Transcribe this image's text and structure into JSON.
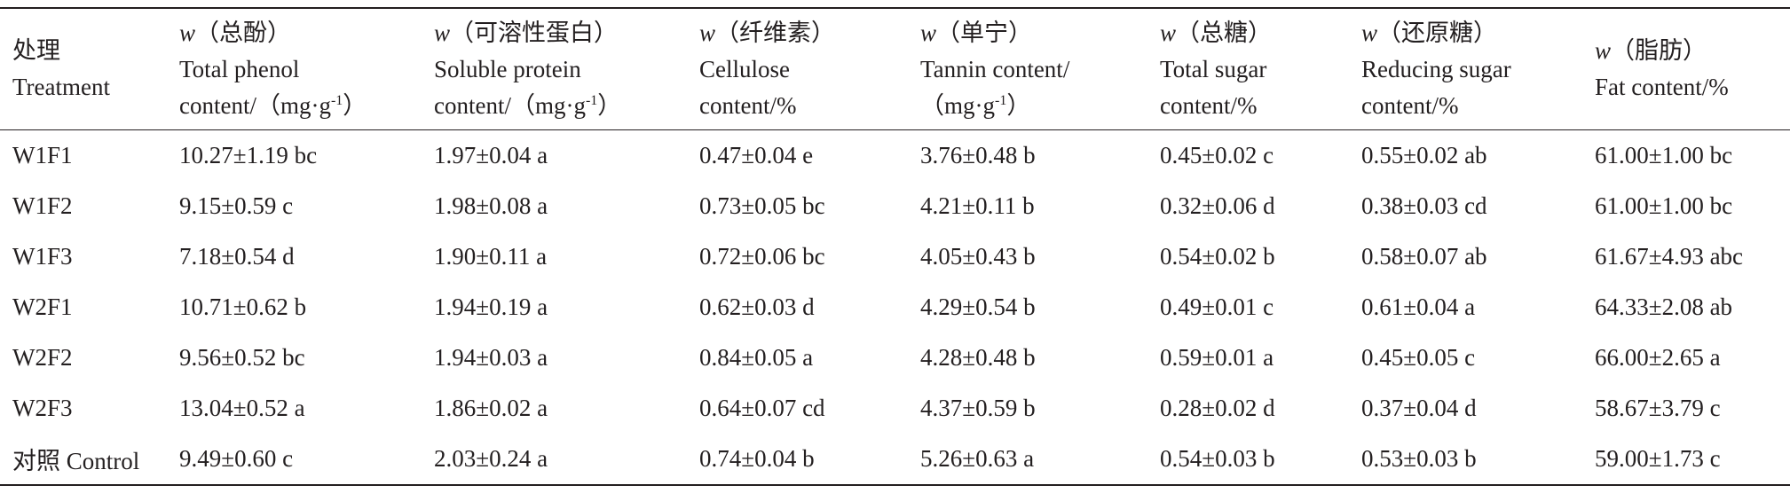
{
  "table": {
    "header": [
      [
        [
          "处理"
        ],
        [
          "Treatment"
        ]
      ],
      [
        [
          {
            "italic": "w"
          },
          "（总酚）"
        ],
        [
          "Total phenol"
        ],
        [
          "content/（mg·g",
          {
            "sup": "-1"
          },
          "）"
        ]
      ],
      [
        [
          {
            "italic": "w"
          },
          "（可溶性蛋白）"
        ],
        [
          "Soluble protein"
        ],
        [
          "content/（mg·g",
          {
            "sup": "-1"
          },
          "）"
        ]
      ],
      [
        [
          {
            "italic": "w"
          },
          "（纤维素）"
        ],
        [
          "Cellulose"
        ],
        [
          "content/%"
        ]
      ],
      [
        [
          {
            "italic": "w"
          },
          "（单宁）"
        ],
        [
          "Tannin content/"
        ],
        [
          "（mg·g",
          {
            "sup": "-1"
          },
          "）"
        ]
      ],
      [
        [
          {
            "italic": "w"
          },
          "（总糖）"
        ],
        [
          "Total sugar"
        ],
        [
          "content/%"
        ]
      ],
      [
        [
          {
            "italic": "w"
          },
          "（还原糖）"
        ],
        [
          "Reducing sugar"
        ],
        [
          "content/%"
        ]
      ],
      [
        [
          {
            "italic": "w"
          },
          "（脂肪）"
        ],
        [
          "Fat content/%"
        ]
      ]
    ],
    "rows": [
      [
        "W1F1",
        "10.27±1.19 bc",
        "1.97±0.04 a",
        "0.47±0.04 e",
        "3.76±0.48 b",
        "0.45±0.02 c",
        "0.55±0.02 ab",
        "61.00±1.00 bc"
      ],
      [
        "W1F2",
        "9.15±0.59 c",
        "1.98±0.08 a",
        "0.73±0.05 bc",
        "4.21±0.11 b",
        "0.32±0.06 d",
        "0.38±0.03 cd",
        "61.00±1.00 bc"
      ],
      [
        "W1F3",
        "7.18±0.54 d",
        "1.90±0.11 a",
        "0.72±0.06 bc",
        "4.05±0.43 b",
        "0.54±0.02 b",
        "0.58±0.07 ab",
        "61.67±4.93 abc"
      ],
      [
        "W2F1",
        "10.71±0.62 b",
        "1.94±0.19 a",
        "0.62±0.03 d",
        "4.29±0.54 b",
        "0.49±0.01 c",
        "0.61±0.04 a",
        "64.33±2.08 ab"
      ],
      [
        "W2F2",
        "9.56±0.52 bc",
        "1.94±0.03 a",
        "0.84±0.05 a",
        "4.28±0.48 b",
        "0.59±0.01 a",
        "0.45±0.05 c",
        "66.00±2.65 a"
      ],
      [
        "W2F3",
        "13.04±0.52 a",
        "1.86±0.02 a",
        "0.64±0.07 cd",
        "4.37±0.59 b",
        "0.28±0.02 d",
        "0.37±0.04 d",
        "58.67±3.79 c"
      ],
      [
        "对照 Control",
        "9.49±0.60 c",
        "2.03±0.24 a",
        "0.74±0.04 b",
        "5.26±0.63 a",
        "0.54±0.03 b",
        "0.53±0.03 b",
        "59.00±1.73 c"
      ]
    ]
  }
}
